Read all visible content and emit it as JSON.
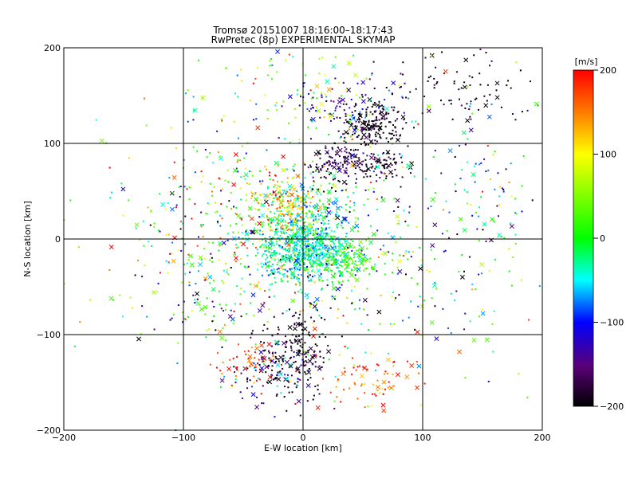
{
  "chart_data": {
    "type": "scatter",
    "title": "Tromsø 20151007 18:16:00–18:17:43",
    "subtitle": "RwPretec (8p) EXPERIMENTAL SKYMAP",
    "xlabel": "E-W location [km]",
    "ylabel": "N-S location [km]",
    "xlim": [
      -200,
      200
    ],
    "ylim": [
      -200,
      200
    ],
    "xticks": [
      -200,
      -100,
      0,
      100,
      200
    ],
    "yticks": [
      -200,
      -100,
      0,
      100,
      200
    ],
    "grid": true,
    "marker_types": [
      "dot",
      "x"
    ],
    "colorbar": {
      "label": "[m/s]",
      "range": [
        -200,
        200
      ],
      "ticks": [
        200,
        100,
        0,
        -100,
        -200
      ],
      "colormap": "rainbow: black(-200) → purple → blue(-100) → cyan → green(0) → yellow(100) → orange → red(200)"
    },
    "clusters": [
      {
        "x": 0,
        "y": -10,
        "sx": 22,
        "sy": 20,
        "n": 650,
        "v": -40,
        "vs": 35
      },
      {
        "x": 35,
        "y": -25,
        "sx": 12,
        "sy": 10,
        "n": 120,
        "v": 20,
        "vs": 25
      },
      {
        "x": 5,
        "y": 20,
        "sx": 20,
        "sy": 25,
        "n": 250,
        "v": -20,
        "vs": 40
      },
      {
        "x": -15,
        "y": 35,
        "sx": 14,
        "sy": 16,
        "n": 140,
        "v": 130,
        "vs": 40
      },
      {
        "x": 60,
        "y": 120,
        "sx": 14,
        "sy": 10,
        "n": 170,
        "v": -195,
        "vs": 10
      },
      {
        "x": 30,
        "y": 80,
        "sx": 14,
        "sy": 12,
        "n": 140,
        "v": -175,
        "vs": 25
      },
      {
        "x": 65,
        "y": 75,
        "sx": 10,
        "sy": 8,
        "n": 70,
        "v": -190,
        "vs": 15
      },
      {
        "x": 40,
        "y": 140,
        "sx": 25,
        "sy": 15,
        "n": 90,
        "v": -140,
        "vs": 35
      },
      {
        "x": -5,
        "y": -120,
        "sx": 14,
        "sy": 22,
        "n": 190,
        "v": -190,
        "vs": 15
      },
      {
        "x": -30,
        "y": -140,
        "sx": 20,
        "sy": 15,
        "n": 80,
        "v": -140,
        "vs": 50
      },
      {
        "x": 60,
        "y": -150,
        "sx": 20,
        "sy": 15,
        "n": 70,
        "v": 170,
        "vs": 30
      },
      {
        "x": -45,
        "y": -130,
        "sx": 15,
        "sy": 12,
        "n": 50,
        "v": 180,
        "vs": 25
      },
      {
        "x": -60,
        "y": 20,
        "sx": 50,
        "sy": 50,
        "n": 300,
        "v": 40,
        "vs": 100
      },
      {
        "x": 90,
        "y": -20,
        "sx": 50,
        "sy": 50,
        "n": 180,
        "v": -40,
        "vs": 100
      },
      {
        "x": 130,
        "y": 160,
        "sx": 30,
        "sy": 20,
        "n": 80,
        "v": -190,
        "vs": 20
      },
      {
        "x": 150,
        "y": 60,
        "sx": 30,
        "sy": 30,
        "n": 60,
        "v": -60,
        "vs": 90
      },
      {
        "x": 0,
        "y": 160,
        "sx": 40,
        "sy": 25,
        "n": 90,
        "v": 20,
        "vs": 90
      },
      {
        "x": -80,
        "y": -60,
        "sx": 40,
        "sy": 30,
        "n": 80,
        "v": -60,
        "vs": 100
      },
      {
        "x": 0,
        "y": 0,
        "sx": 120,
        "sy": 110,
        "n": 250,
        "v": 0,
        "vs": 120
      }
    ]
  }
}
